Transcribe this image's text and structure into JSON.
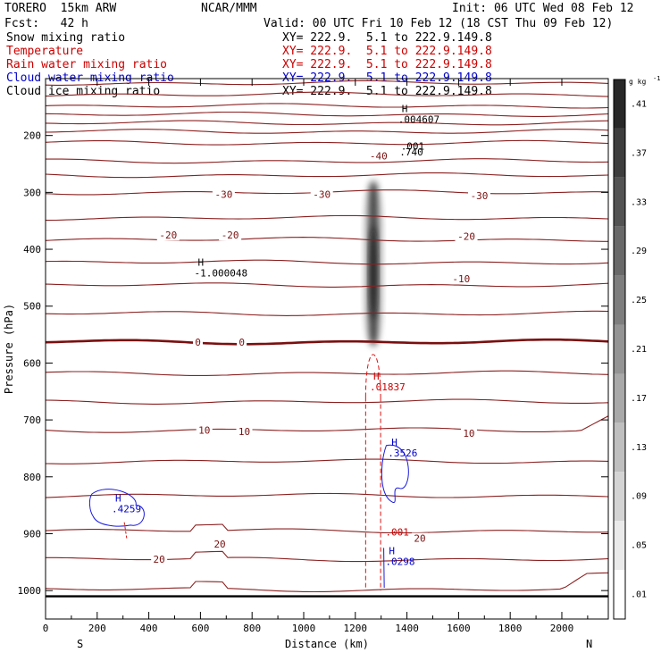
{
  "header": {
    "model": "TORERO  15km ARW",
    "center": "NCAR/MMM",
    "init": "Init: 06 UTC Wed 08 Feb 12",
    "fcst": "Fcst:   42 h",
    "valid": "Valid: 00 UTC Fri 10 Feb 12 (18 CST Thu 09 Feb 12)"
  },
  "legend": [
    {
      "label": "Snow mixing ratio",
      "xy": "XY= 222.9.  5.1 to 222.9.149.8",
      "color": "#000000"
    },
    {
      "label": "Temperature",
      "xy": "XY= 222.9.  5.1 to 222.9.149.8",
      "color": "#cc0000"
    },
    {
      "label": "Rain water mixing ratio",
      "xy": "XY= 222.9.  5.1 to 222.9.149.8",
      "color": "#cc0000"
    },
    {
      "label": "Cloud water mixing ratio",
      "xy": "XY= 222.9.  5.1 to 222.9.149.8",
      "color": "#0000cc"
    },
    {
      "label": "Cloud ice mixing ratio",
      "xy": "XY= 222.9.  5.1 to 222.9.149.8",
      "color": "#000000"
    }
  ],
  "chart_data": {
    "type": "cross-section",
    "xlabel": "Distance (km)",
    "ylabel": "Pressure (hPa)",
    "xlim": [
      0,
      2180
    ],
    "ylim": [
      100,
      1050
    ],
    "x_ticks": [
      0,
      200,
      400,
      600,
      800,
      1000,
      1200,
      1400,
      1600,
      1800,
      2000
    ],
    "y_ticks": [
      200,
      300,
      400,
      500,
      600,
      700,
      800,
      900,
      1000
    ],
    "left_end": "S",
    "right_end": "N",
    "colorbar": {
      "unit": "g kg",
      "unit_exp": "-1",
      "ticks": [
        0.41,
        0.37,
        0.33,
        0.29,
        0.25,
        0.21,
        0.17,
        0.13,
        0.09,
        0.05,
        0.01
      ],
      "tick_labels": [
        ".41",
        ".37",
        ".33",
        ".29",
        ".25",
        ".21",
        ".17",
        ".13",
        ".09",
        ".05",
        ".01"
      ]
    },
    "temperature_levels_hpa": [
      108,
      128,
      148,
      163,
      178,
      193,
      213,
      245,
      270,
      300,
      345,
      383,
      423,
      463,
      513,
      563,
      618,
      668,
      718,
      773,
      833,
      895,
      945,
      998
    ],
    "freezing_level_hpa": 563,
    "terrain_hpa": 1010,
    "temperature_labels": [
      {
        "text": "-40",
        "x": 1290,
        "p": 236
      },
      {
        "text": "-30",
        "x": 690,
        "p": 303
      },
      {
        "text": "-30",
        "x": 1070,
        "p": 303
      },
      {
        "text": "-30",
        "x": 1680,
        "p": 306
      },
      {
        "text": "-20",
        "x": 475,
        "p": 375
      },
      {
        "text": "-20",
        "x": 715,
        "p": 375
      },
      {
        "text": "-20",
        "x": 1630,
        "p": 377
      },
      {
        "text": "-10",
        "x": 1610,
        "p": 452
      },
      {
        "text": "0",
        "x": 590,
        "p": 563
      },
      {
        "text": "0",
        "x": 760,
        "p": 563
      },
      {
        "text": "10",
        "x": 615,
        "p": 718
      },
      {
        "text": "10",
        "x": 770,
        "p": 720
      },
      {
        "text": "10",
        "x": 1640,
        "p": 723
      },
      {
        "text": "20",
        "x": 1450,
        "p": 908
      },
      {
        "text": "20",
        "x": 675,
        "p": 918
      },
      {
        "text": "20",
        "x": 440,
        "p": 945
      }
    ],
    "snow_column": {
      "x_center": 1270,
      "p_top": 280,
      "p_bottom": 570,
      "max_gkg": 0.41
    },
    "extrema_labels": [
      {
        "symbol": "H",
        "value": ".004607",
        "x": 1380,
        "p": 178,
        "color": "#000000"
      },
      {
        "symbol": "",
        "value": ".001",
        "x": 1390,
        "p": 225,
        "color": "#000000"
      },
      {
        "symbol": "",
        "value": ".740",
        "x": 1385,
        "p": 235,
        "color": "#000000"
      },
      {
        "symbol": "H",
        "value": "-1.000048",
        "x": 590,
        "p": 448,
        "color": "#000000"
      },
      {
        "symbol": "H",
        "value": ".01837",
        "x": 1270,
        "p": 648,
        "color": "#cc0000"
      },
      {
        "symbol": "",
        "value": ".001",
        "x": 1330,
        "p": 903,
        "color": "#cc0000"
      },
      {
        "symbol": "H",
        "value": ".3526",
        "x": 1340,
        "p": 764,
        "color": "#0000cc"
      },
      {
        "symbol": "H",
        "value": ".0298",
        "x": 1330,
        "p": 955,
        "color": "#0000cc"
      },
      {
        "symbol": "H",
        "value": ".4259",
        "x": 270,
        "p": 862,
        "color": "#0000cc"
      }
    ]
  }
}
